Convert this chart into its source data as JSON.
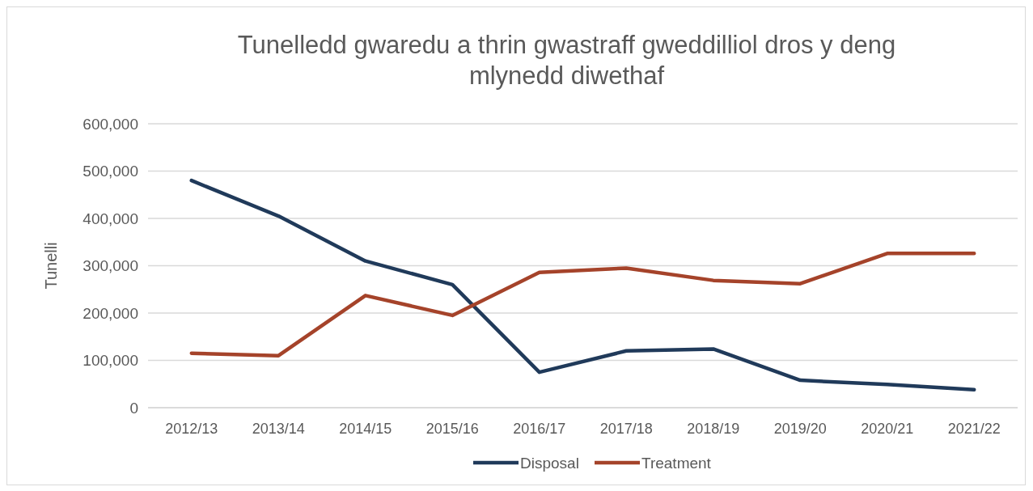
{
  "chart_data": {
    "type": "line",
    "title": "Tunelledd gwaredu a thrin gwastraff gweddilliol dros y deng mlynedd diwethaf",
    "ylabel": "Tunelli",
    "categories": [
      "2012/13",
      "2013/14",
      "2014/15",
      "2015/16",
      "2016/17",
      "2017/18",
      "2018/19",
      "2019/20",
      "2020/21",
      "2021/22"
    ],
    "series": [
      {
        "name": "Disposal",
        "color": "#203a5a",
        "values": [
          480000,
          405000,
          310000,
          260000,
          75000,
          120000,
          124000,
          58000,
          49000,
          38000
        ]
      },
      {
        "name": "Treatment",
        "color": "#a5432a",
        "values": [
          115000,
          110000,
          237000,
          195000,
          286000,
          295000,
          269000,
          262000,
          326000,
          326000
        ]
      }
    ],
    "ylim": [
      0,
      600000
    ],
    "yticks": [
      {
        "value": 0,
        "label": "0"
      },
      {
        "value": 100000,
        "label": "100,000"
      },
      {
        "value": 200000,
        "label": "200,000"
      },
      {
        "value": 300000,
        "label": "300,000"
      },
      {
        "value": 400000,
        "label": "400,000"
      },
      {
        "value": 500000,
        "label": "500,000"
      },
      {
        "value": 600000,
        "label": "600,000"
      }
    ],
    "grid": "y",
    "legend": "bottom",
    "marker": "none",
    "line_style": "solid"
  }
}
